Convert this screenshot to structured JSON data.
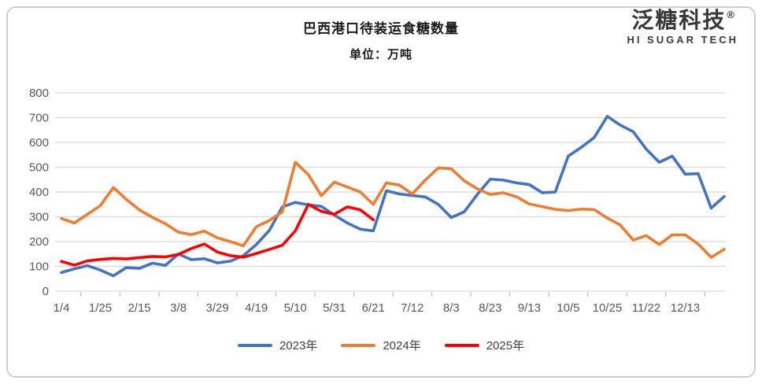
{
  "header": {
    "title": "巴西港口待装运食糖数量",
    "subtitle": "单位：万吨"
  },
  "logo": {
    "name": "泛糖科技",
    "registered_mark": "®",
    "tagline": "HI SUGAR TECH"
  },
  "colors": {
    "series_2023": "#4472C4",
    "series_2024": "#ED7D31",
    "series_2025": "#FF0000",
    "gridline": "#D9D9D9",
    "axis_text": "#595959"
  },
  "chart_data": {
    "type": "line",
    "title": "巴西港口待装运食糖数量",
    "unit_label": "单位：万吨",
    "xlabel": "",
    "ylabel": "",
    "ylim": [
      0,
      800
    ],
    "y_ticks": [
      0,
      100,
      200,
      300,
      400,
      500,
      600,
      700,
      800
    ],
    "grid": true,
    "legend_position": "bottom",
    "x_tick_labels": [
      "1/4",
      "1/25",
      "2/15",
      "3/8",
      "3/29",
      "4/19",
      "5/10",
      "5/31",
      "6/21",
      "7/12",
      "8/3",
      "8/23",
      "9/13",
      "10/5",
      "10/25",
      "11/22",
      "12/13"
    ],
    "x_tick_every": 3,
    "points_per_series_note": "weekly data points, one tick label every 3 points",
    "series": [
      {
        "name": "2023年",
        "color": "#4472C4",
        "values": [
          75,
          90,
          103,
          85,
          62,
          95,
          92,
          113,
          104,
          150,
          127,
          131,
          114,
          121,
          143,
          188,
          245,
          340,
          358,
          348,
          342,
          307,
          275,
          250,
          243,
          405,
          392,
          386,
          380,
          350,
          297,
          320,
          390,
          452,
          448,
          437,
          430,
          397,
          400,
          545,
          580,
          620,
          705,
          670,
          643,
          573,
          520,
          545,
          472,
          474,
          335,
          382
        ]
      },
      {
        "name": "2024年",
        "color": "#ED7D31",
        "values": [
          293,
          275,
          310,
          345,
          418,
          370,
          328,
          298,
          272,
          238,
          228,
          242,
          215,
          200,
          183,
          260,
          285,
          320,
          520,
          470,
          385,
          440,
          420,
          400,
          350,
          437,
          428,
          392,
          448,
          497,
          494,
          445,
          413,
          390,
          397,
          381,
          352,
          341,
          330,
          325,
          331,
          329,
          295,
          267,
          206,
          224,
          188,
          227,
          227,
          190,
          136,
          169
        ]
      },
      {
        "name": "2025年",
        "color": "#FF0000",
        "values": [
          120,
          105,
          122,
          128,
          132,
          130,
          135,
          140,
          138,
          148,
          172,
          190,
          158,
          143,
          137,
          152,
          168,
          185,
          243,
          350,
          322,
          310,
          340,
          328,
          288
        ]
      }
    ]
  }
}
